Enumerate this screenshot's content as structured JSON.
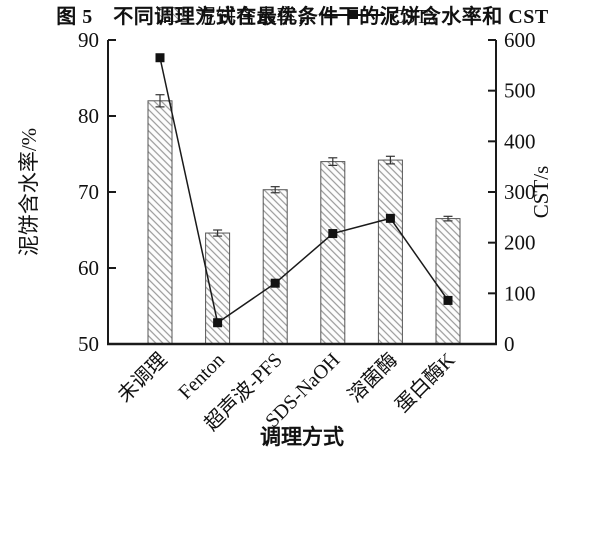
{
  "figure": {
    "caption": "图 5　不同调理方式在最优条件下的泥饼含水率和 CST"
  },
  "legend": {
    "bar_label": "泥饼含水率；",
    "line_label": "CST。"
  },
  "chart_data": {
    "type": "bar",
    "subtype": "bar+line dual axis",
    "categories": [
      "未调理",
      "Fenton",
      "超声波-PFS",
      "SDS-NaOH",
      "溶菌酶",
      "蛋白酶K"
    ],
    "series": [
      {
        "name": "泥饼含水率",
        "plot": "bar",
        "axis": "left",
        "values": [
          82.0,
          64.6,
          70.3,
          74.0,
          74.2,
          66.5
        ],
        "errors": [
          0.8,
          0.4,
          0.4,
          0.5,
          0.5,
          0.3
        ]
      },
      {
        "name": "CST",
        "plot": "line",
        "axis": "right",
        "marker": "square",
        "values": [
          565,
          42,
          120,
          218,
          248,
          86
        ]
      }
    ],
    "xlabel": "调理方式",
    "ylabel_left": "泥饼含水率/%",
    "ylabel_right": "CST/s",
    "ylim_left": [
      50,
      90
    ],
    "yticks_left": [
      50,
      60,
      70,
      80,
      90
    ],
    "ylim_right": [
      0,
      600
    ],
    "yticks_right": [
      0,
      100,
      200,
      300,
      400,
      500,
      600
    ],
    "grid": "off",
    "legend_position": "below",
    "colors": {
      "bar_fill": "#fdfdfd",
      "bar_hatch": "#9a9a9a",
      "bar_edge": "#555555",
      "error": "#333333",
      "line": "#1a1a1a",
      "marker": "#111111",
      "axis": "#1a1a1a",
      "text": "#111111"
    }
  }
}
